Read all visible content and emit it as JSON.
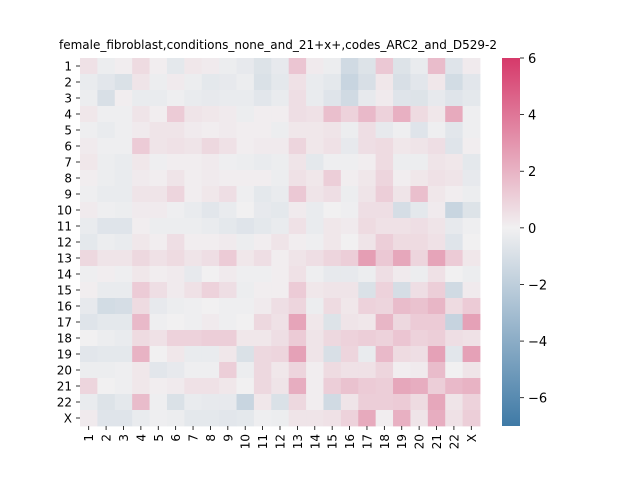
{
  "chart_data": {
    "type": "heatmap",
    "title": "female_fibroblast,conditions_none_and_21+x+,codes_ARC2_and_D529-2",
    "rows": [
      "1",
      "2",
      "3",
      "4",
      "5",
      "6",
      "7",
      "8",
      "9",
      "10",
      "11",
      "12",
      "13",
      "14",
      "15",
      "16",
      "17",
      "18",
      "19",
      "20",
      "21",
      "22",
      "X"
    ],
    "cols": [
      "1",
      "2",
      "3",
      "4",
      "5",
      "6",
      "7",
      "8",
      "9",
      "10",
      "11",
      "12",
      "13",
      "14",
      "15",
      "16",
      "17",
      "18",
      "19",
      "20",
      "21",
      "22",
      "X"
    ],
    "values": [
      [
        0.5,
        -0.2,
        0.1,
        0.7,
        0.1,
        -0.5,
        0.3,
        0.2,
        -0.2,
        -0.4,
        -0.8,
        -0.4,
        1.4,
        0.2,
        -0.2,
        -1.3,
        -0.8,
        1.3,
        -0.8,
        -0.3,
        1.7,
        -0.7,
        0.2
      ],
      [
        -0.3,
        -0.6,
        -0.9,
        0.4,
        -0.2,
        0.2,
        -0.2,
        -0.5,
        -0.4,
        -0.2,
        -0.9,
        -0.5,
        0.5,
        -0.3,
        -0.5,
        -1.6,
        -1.0,
        0.3,
        -1.0,
        -0.6,
        0.3,
        -1.2,
        -0.6
      ],
      [
        -0.2,
        -1.0,
        0.1,
        -0.3,
        -0.3,
        -0.1,
        -0.3,
        -0.4,
        -0.3,
        -0.3,
        -0.6,
        -0.3,
        0.6,
        -0.3,
        -0.7,
        -1.3,
        -0.4,
        0.2,
        -0.7,
        -0.8,
        -0.4,
        -0.7,
        -0.5
      ],
      [
        0.3,
        -0.1,
        -0.1,
        0.4,
        0.1,
        1.2,
        0.4,
        0.3,
        0.2,
        -0.2,
        0.1,
        0.1,
        0.6,
        0.5,
        1.6,
        1.0,
        1.8,
        1.0,
        2.1,
        0.7,
        0.3,
        2.3,
        -0.1
      ],
      [
        -0.1,
        -0.3,
        -0.1,
        0.2,
        0.4,
        0.4,
        0.2,
        0.1,
        0.2,
        0.1,
        0.1,
        -0.2,
        0.3,
        0.3,
        0.4,
        -0.2,
        0.6,
        -0.4,
        -0.1,
        -0.7,
        -0.1,
        -0.6,
        -0.1
      ],
      [
        0.2,
        -0.1,
        -0.1,
        1.2,
        0.4,
        0.5,
        0.4,
        0.8,
        0.5,
        0.1,
        0.2,
        0.2,
        0.9,
        0.3,
        0.5,
        -0.4,
        0.6,
        0.7,
        0.3,
        0.4,
        0.6,
        -0.7,
        0.1
      ],
      [
        0.3,
        -0.2,
        -0.3,
        0.3,
        -0.1,
        0.1,
        0.1,
        0.2,
        -0.1,
        -0.2,
        -0.3,
        -0.2,
        0.4,
        -0.5,
        -0.1,
        -0.1,
        0.1,
        0.7,
        -0.2,
        -0.2,
        0.4,
        0.3,
        -0.5
      ],
      [
        0.1,
        -0.2,
        -0.3,
        0.2,
        0.1,
        0.4,
        0.1,
        0.2,
        0.1,
        0.1,
        0.1,
        -0.2,
        0.5,
        0.3,
        1.1,
        0.1,
        0.3,
        0.9,
        0.1,
        0.3,
        0.5,
        0.4,
        -0.4
      ],
      [
        -0.1,
        -0.3,
        -0.3,
        0.4,
        0.4,
        0.9,
        0.1,
        0.3,
        0.6,
        -0.1,
        -0.5,
        -0.3,
        1.3,
        0.4,
        0.6,
        -0.2,
        0.4,
        1.1,
        0.4,
        1.6,
        0.3,
        0.1,
        -0.2
      ],
      [
        0.2,
        -0.1,
        -0.2,
        0.2,
        0.2,
        -0.1,
        -0.3,
        -0.6,
        -0.3,
        0.0,
        -0.4,
        -0.5,
        0.2,
        -0.3,
        0.0,
        -0.1,
        0.6,
        0.6,
        -1.1,
        -0.5,
        0.2,
        -1.6,
        -0.8
      ],
      [
        -0.3,
        -0.7,
        -0.7,
        0.1,
        -0.2,
        -0.2,
        -0.2,
        -0.3,
        -0.5,
        -0.7,
        -0.5,
        -0.3,
        0.5,
        -0.3,
        0.3,
        0.2,
        0.7,
        0.5,
        0.5,
        0.6,
        0.4,
        -0.4,
        -0.1
      ],
      [
        -0.5,
        -0.2,
        -0.3,
        0.3,
        0.1,
        0.6,
        0.1,
        0.1,
        0.2,
        -0.2,
        0.1,
        0.4,
        0.1,
        -0.1,
        0.3,
        0.0,
        0.4,
        1.1,
        0.7,
        0.7,
        0.5,
        -0.7,
        0.0
      ],
      [
        0.8,
        0.4,
        0.4,
        0.8,
        0.5,
        0.7,
        0.4,
        0.6,
        1.2,
        0.3,
        0.6,
        0.1,
        0.4,
        0.6,
        0.9,
        1.1,
        2.7,
        1.3,
        2.4,
        0.9,
        2.5,
        1.2,
        0.3
      ],
      [
        -0.1,
        0.1,
        -0.1,
        0.3,
        0.1,
        0.2,
        -0.4,
        0.0,
        0.2,
        -0.1,
        -0.1,
        0.1,
        0.5,
        -0.1,
        -0.4,
        -0.4,
        -0.2,
        0.6,
        0.2,
        -0.2,
        0.5,
        0.0,
        -0.2
      ],
      [
        0.1,
        -0.3,
        -0.3,
        1.2,
        0.6,
        0.2,
        0.5,
        1.0,
        0.6,
        -0.2,
        0.1,
        0.1,
        1.2,
        0.3,
        0.4,
        0.4,
        -0.9,
        1.0,
        -1.1,
        0.6,
        1.1,
        -1.3,
        0.2
      ],
      [
        -0.4,
        -1.2,
        -1.1,
        0.7,
        -0.4,
        -0.2,
        -0.1,
        0.0,
        -0.1,
        -0.1,
        0.2,
        0.6,
        0.9,
        -0.2,
        0.7,
        0.3,
        1.0,
        0.9,
        1.7,
        1.5,
        1.9,
        0.7,
        1.2
      ],
      [
        -0.7,
        -0.5,
        -0.5,
        1.8,
        -0.1,
        0.0,
        -0.1,
        0.2,
        -0.1,
        0.0,
        0.8,
        0.5,
        2.5,
        0.3,
        -0.8,
        0.4,
        0.3,
        1.9,
        0.8,
        1.2,
        1.2,
        -1.7,
        2.6
      ],
      [
        0.0,
        -0.2,
        -0.3,
        0.7,
        0.5,
        1.0,
        1.0,
        1.1,
        1.1,
        0.3,
        0.3,
        0.6,
        1.2,
        0.4,
        0.8,
        1.0,
        1.1,
        1.0,
        1.4,
        1.0,
        1.1,
        0.6,
        0.5
      ],
      [
        -0.6,
        -0.5,
        -0.5,
        2.0,
        0.0,
        0.3,
        -0.3,
        -0.3,
        0.3,
        -0.9,
        0.8,
        0.9,
        2.6,
        0.4,
        -1.0,
        0.9,
        -0.3,
        1.8,
        0.7,
        0.6,
        2.6,
        -0.6,
        2.6
      ],
      [
        -0.2,
        -0.2,
        -0.1,
        0.3,
        -0.6,
        -0.4,
        -0.1,
        -0.1,
        1.1,
        -0.2,
        0.8,
        0.3,
        0.9,
        0.1,
        0.7,
        0.5,
        0.5,
        0.9,
        0.1,
        0.2,
        1.7,
        0.0,
        0.4
      ],
      [
        0.9,
        0.0,
        -0.1,
        0.3,
        0.1,
        0.2,
        0.5,
        0.5,
        0.3,
        0.0,
        0.8,
        0.4,
        2.2,
        0.1,
        1.1,
        1.5,
        1.2,
        1.1,
        2.4,
        2.2,
        1.1,
        1.8,
        2.0
      ],
      [
        -0.3,
        -0.8,
        -0.5,
        1.7,
        -0.1,
        -0.9,
        -0.3,
        -0.4,
        -0.4,
        -1.6,
        0.3,
        -0.9,
        0.8,
        0.1,
        -1.3,
        0.4,
        1.1,
        1.1,
        1.2,
        0.7,
        2.4,
        0.4,
        1.0
      ],
      [
        0.2,
        -0.7,
        -0.7,
        -0.3,
        -0.1,
        -0.2,
        -0.5,
        -0.5,
        -0.6,
        -0.5,
        -0.1,
        -0.2,
        0.4,
        0.4,
        0.5,
        1.0,
        2.3,
        0.1,
        2.1,
        0.4,
        2.2,
        0.5,
        1.1
      ]
    ],
    "vmin": -7,
    "vmax": 6,
    "colorbar_ticks": [
      -6,
      -4,
      -2,
      0,
      2,
      4,
      6
    ],
    "colormap": {
      "low": "#3f7aa6",
      "mid": "#f1f0f1",
      "high": "#d6396a"
    },
    "xlabel": "",
    "ylabel": ""
  }
}
